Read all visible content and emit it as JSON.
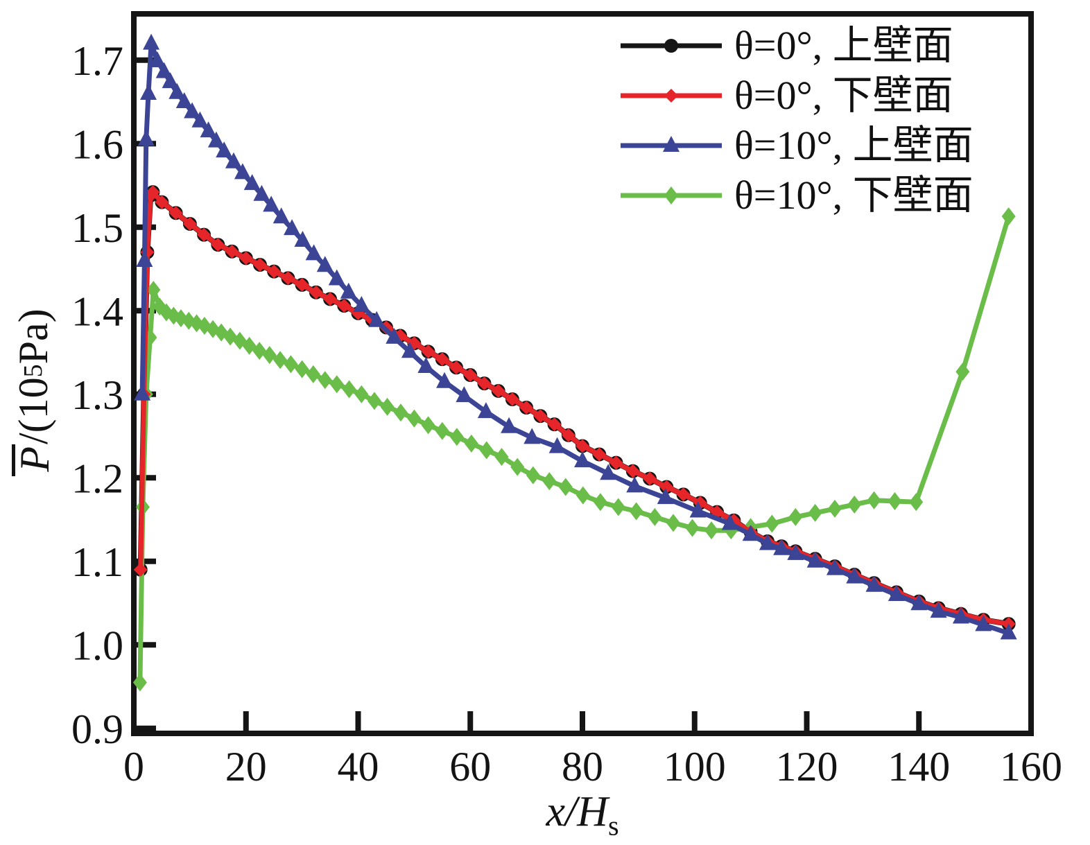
{
  "chart_data": {
    "type": "line",
    "title": "",
    "xlabel": {
      "main": "x/H",
      "sub": "s"
    },
    "ylabel": {
      "p": "P",
      "mid": "/(10",
      "exp": "5",
      "unit": "Pa)"
    },
    "xlim": [
      0,
      160
    ],
    "ylim": [
      0.894,
      1.7554
    ],
    "grid": false,
    "legend_position": "top-right",
    "x_tick_values": [
      0,
      20,
      40,
      60,
      80,
      100,
      120,
      140,
      160
    ],
    "x_tick_labels": [
      "0",
      "20",
      "40",
      "60",
      "80",
      "100",
      "120",
      "140",
      "160"
    ],
    "y_tick_values": [
      0.9,
      1.0,
      1.1,
      1.2,
      1.3,
      1.4,
      1.5,
      1.6,
      1.7
    ],
    "y_tick_labels": [
      "0.9",
      "1.0",
      "1.1",
      "1.2",
      "1.3",
      "1.4",
      "1.5",
      "1.6",
      "1.7"
    ],
    "frame_color": "#151515",
    "series": [
      {
        "name": "theta0-upper-wall",
        "label": "θ=0°, 上壁面",
        "color": "#161616",
        "marker": "circle",
        "points": [
          [
            1.2,
            1.09
          ],
          [
            1.8,
            1.3
          ],
          [
            2.4,
            1.47
          ],
          [
            3.0,
            1.538
          ],
          [
            3.4,
            1.542
          ],
          [
            5.0,
            1.53
          ],
          [
            7.5,
            1.517
          ],
          [
            10,
            1.504
          ],
          [
            12.5,
            1.491
          ],
          [
            15,
            1.479
          ],
          [
            17.5,
            1.471
          ],
          [
            20,
            1.463
          ],
          [
            22.5,
            1.455
          ],
          [
            25,
            1.447
          ],
          [
            27.5,
            1.439
          ],
          [
            30,
            1.431
          ],
          [
            32.5,
            1.422
          ],
          [
            35,
            1.414
          ],
          [
            37.5,
            1.406
          ],
          [
            40,
            1.397
          ],
          [
            42.5,
            1.389
          ],
          [
            45,
            1.38
          ],
          [
            47.5,
            1.37
          ],
          [
            50,
            1.361
          ],
          [
            52.5,
            1.351
          ],
          [
            55,
            1.342
          ],
          [
            57.5,
            1.332
          ],
          [
            60,
            1.323
          ],
          [
            62.5,
            1.313
          ],
          [
            65,
            1.304
          ],
          [
            67.5,
            1.294
          ],
          [
            70,
            1.284
          ],
          [
            72.5,
            1.274
          ],
          [
            75,
            1.264
          ],
          [
            77.5,
            1.251
          ],
          [
            80,
            1.238
          ],
          [
            83,
            1.228
          ],
          [
            86,
            1.218
          ],
          [
            89,
            1.208
          ],
          [
            92,
            1.199
          ],
          [
            95,
            1.189
          ],
          [
            98,
            1.18
          ],
          [
            101,
            1.17
          ],
          [
            104,
            1.159
          ],
          [
            107,
            1.149
          ],
          [
            110,
            1.135
          ],
          [
            113,
            1.124
          ],
          [
            115.5,
            1.118
          ],
          [
            118,
            1.112
          ],
          [
            121.5,
            1.103
          ],
          [
            125,
            1.094
          ],
          [
            128.5,
            1.084
          ],
          [
            132,
            1.074
          ],
          [
            136,
            1.063
          ],
          [
            140,
            1.052
          ],
          [
            143.5,
            1.044
          ],
          [
            147.5,
            1.037
          ],
          [
            151.5,
            1.03
          ],
          [
            156,
            1.025
          ]
        ]
      },
      {
        "name": "theta0-lower-wall",
        "label": "θ=0°, 下壁面",
        "color": "#e52529",
        "marker": "square-diamond",
        "points": [
          [
            1.2,
            1.09
          ],
          [
            1.8,
            1.3
          ],
          [
            2.4,
            1.47
          ],
          [
            3.0,
            1.538
          ],
          [
            3.4,
            1.542
          ],
          [
            5.0,
            1.53
          ],
          [
            7.5,
            1.517
          ],
          [
            10,
            1.504
          ],
          [
            12.5,
            1.491
          ],
          [
            15,
            1.479
          ],
          [
            17.5,
            1.471
          ],
          [
            20,
            1.463
          ],
          [
            22.5,
            1.455
          ],
          [
            25,
            1.447
          ],
          [
            27.5,
            1.439
          ],
          [
            30,
            1.431
          ],
          [
            32.5,
            1.422
          ],
          [
            35,
            1.414
          ],
          [
            37.5,
            1.406
          ],
          [
            40,
            1.397
          ],
          [
            42.5,
            1.389
          ],
          [
            45,
            1.38
          ],
          [
            47.5,
            1.37
          ],
          [
            50,
            1.361
          ],
          [
            52.5,
            1.351
          ],
          [
            55,
            1.342
          ],
          [
            57.5,
            1.332
          ],
          [
            60,
            1.323
          ],
          [
            62.5,
            1.313
          ],
          [
            65,
            1.304
          ],
          [
            67.5,
            1.294
          ],
          [
            70,
            1.284
          ],
          [
            72.5,
            1.274
          ],
          [
            75,
            1.264
          ],
          [
            77.5,
            1.251
          ],
          [
            80,
            1.238
          ],
          [
            83,
            1.228
          ],
          [
            86,
            1.218
          ],
          [
            89,
            1.208
          ],
          [
            92,
            1.199
          ],
          [
            95,
            1.189
          ],
          [
            98,
            1.18
          ],
          [
            101,
            1.17
          ],
          [
            104,
            1.159
          ],
          [
            107,
            1.149
          ],
          [
            110,
            1.135
          ],
          [
            113,
            1.124
          ],
          [
            115.5,
            1.118
          ],
          [
            118,
            1.112
          ],
          [
            121.5,
            1.103
          ],
          [
            125,
            1.094
          ],
          [
            128.5,
            1.084
          ],
          [
            132,
            1.074
          ],
          [
            136,
            1.063
          ],
          [
            140,
            1.052
          ],
          [
            143.5,
            1.044
          ],
          [
            147.5,
            1.037
          ],
          [
            151.5,
            1.03
          ],
          [
            156,
            1.025
          ]
        ]
      },
      {
        "name": "theta10-upper-wall",
        "label": "θ=10°, 上壁面",
        "color": "#3c4496",
        "marker": "triangle",
        "points": [
          [
            1.5,
            1.3
          ],
          [
            1.9,
            1.46
          ],
          [
            2.2,
            1.605
          ],
          [
            2.6,
            1.66
          ],
          [
            3.1,
            1.72
          ],
          [
            4.2,
            1.699
          ],
          [
            5.4,
            1.686
          ],
          [
            6.5,
            1.674
          ],
          [
            7.7,
            1.661
          ],
          [
            9.0,
            1.65
          ],
          [
            10.4,
            1.638
          ],
          [
            11.8,
            1.627
          ],
          [
            13.3,
            1.615
          ],
          [
            14.7,
            1.603
          ],
          [
            16.1,
            1.591
          ],
          [
            17.8,
            1.578
          ],
          [
            19.4,
            1.565
          ],
          [
            21.1,
            1.552
          ],
          [
            22.8,
            1.539
          ],
          [
            24.5,
            1.526
          ],
          [
            26.3,
            1.512
          ],
          [
            28.2,
            1.498
          ],
          [
            30.1,
            1.484
          ],
          [
            32.1,
            1.468
          ],
          [
            34.1,
            1.454
          ],
          [
            36.2,
            1.438
          ],
          [
            38.3,
            1.422
          ],
          [
            40.6,
            1.406
          ],
          [
            43.3,
            1.388
          ],
          [
            46.4,
            1.368
          ],
          [
            49.2,
            1.351
          ],
          [
            52.1,
            1.333
          ],
          [
            55.4,
            1.315
          ],
          [
            58.9,
            1.298
          ],
          [
            62.8,
            1.279
          ],
          [
            66.9,
            1.261
          ],
          [
            71,
            1.248
          ],
          [
            75.5,
            1.237
          ],
          [
            80,
            1.22
          ],
          [
            84.6,
            1.205
          ],
          [
            89.3,
            1.19
          ],
          [
            94.8,
            1.176
          ],
          [
            100.6,
            1.16
          ],
          [
            106.3,
            1.145
          ],
          [
            110,
            1.132
          ],
          [
            113,
            1.121
          ],
          [
            115.5,
            1.115
          ],
          [
            118,
            1.109
          ],
          [
            121.5,
            1.1
          ],
          [
            125,
            1.091
          ],
          [
            128.5,
            1.081
          ],
          [
            132,
            1.071
          ],
          [
            136,
            1.06
          ],
          [
            140,
            1.049
          ],
          [
            143.5,
            1.04
          ],
          [
            147.5,
            1.033
          ],
          [
            151.5,
            1.024
          ],
          [
            156,
            1.014
          ]
        ]
      },
      {
        "name": "theta10-lower-wall",
        "label": "θ=10°, 下壁面",
        "color": "#6bbd49",
        "marker": "diamond",
        "points": [
          [
            1.1,
            0.955
          ],
          [
            1.6,
            1.165
          ],
          [
            2.2,
            1.3
          ],
          [
            2.9,
            1.368
          ],
          [
            3.5,
            1.425
          ],
          [
            4.6,
            1.405
          ],
          [
            5.8,
            1.398
          ],
          [
            7.1,
            1.394
          ],
          [
            8.4,
            1.391
          ],
          [
            9.8,
            1.388
          ],
          [
            11.2,
            1.385
          ],
          [
            12.6,
            1.382
          ],
          [
            14.1,
            1.378
          ],
          [
            15.6,
            1.374
          ],
          [
            17.2,
            1.369
          ],
          [
            18.9,
            1.364
          ],
          [
            20.6,
            1.358
          ],
          [
            22.4,
            1.352
          ],
          [
            24.2,
            1.347
          ],
          [
            26.1,
            1.341
          ],
          [
            28,
            1.336
          ],
          [
            30,
            1.33
          ],
          [
            32,
            1.324
          ],
          [
            34.1,
            1.317
          ],
          [
            36.2,
            1.312
          ],
          [
            38.4,
            1.306
          ],
          [
            40.6,
            1.3
          ],
          [
            42.9,
            1.292
          ],
          [
            45.2,
            1.285
          ],
          [
            47.6,
            1.278
          ],
          [
            50,
            1.271
          ],
          [
            52.5,
            1.263
          ],
          [
            55,
            1.256
          ],
          [
            57.6,
            1.249
          ],
          [
            60.2,
            1.241
          ],
          [
            62.9,
            1.233
          ],
          [
            65.6,
            1.225
          ],
          [
            68.4,
            1.213
          ],
          [
            71.2,
            1.203
          ],
          [
            74.1,
            1.196
          ],
          [
            77,
            1.189
          ],
          [
            80.1,
            1.179
          ],
          [
            83.2,
            1.171
          ],
          [
            86.4,
            1.165
          ],
          [
            89.6,
            1.16
          ],
          [
            92.9,
            1.153
          ],
          [
            96.2,
            1.146
          ],
          [
            99.6,
            1.14
          ],
          [
            103,
            1.137
          ],
          [
            106.5,
            1.137
          ],
          [
            110,
            1.141
          ],
          [
            113.8,
            1.145
          ],
          [
            118,
            1.153
          ],
          [
            121.5,
            1.158
          ],
          [
            125,
            1.163
          ],
          [
            128.5,
            1.168
          ],
          [
            132,
            1.173
          ],
          [
            135.7,
            1.172
          ],
          [
            139.5,
            1.171
          ],
          [
            147.8,
            1.327
          ],
          [
            156,
            1.513
          ]
        ]
      }
    ],
    "draw_order": [
      0,
      3,
      1,
      2
    ]
  }
}
